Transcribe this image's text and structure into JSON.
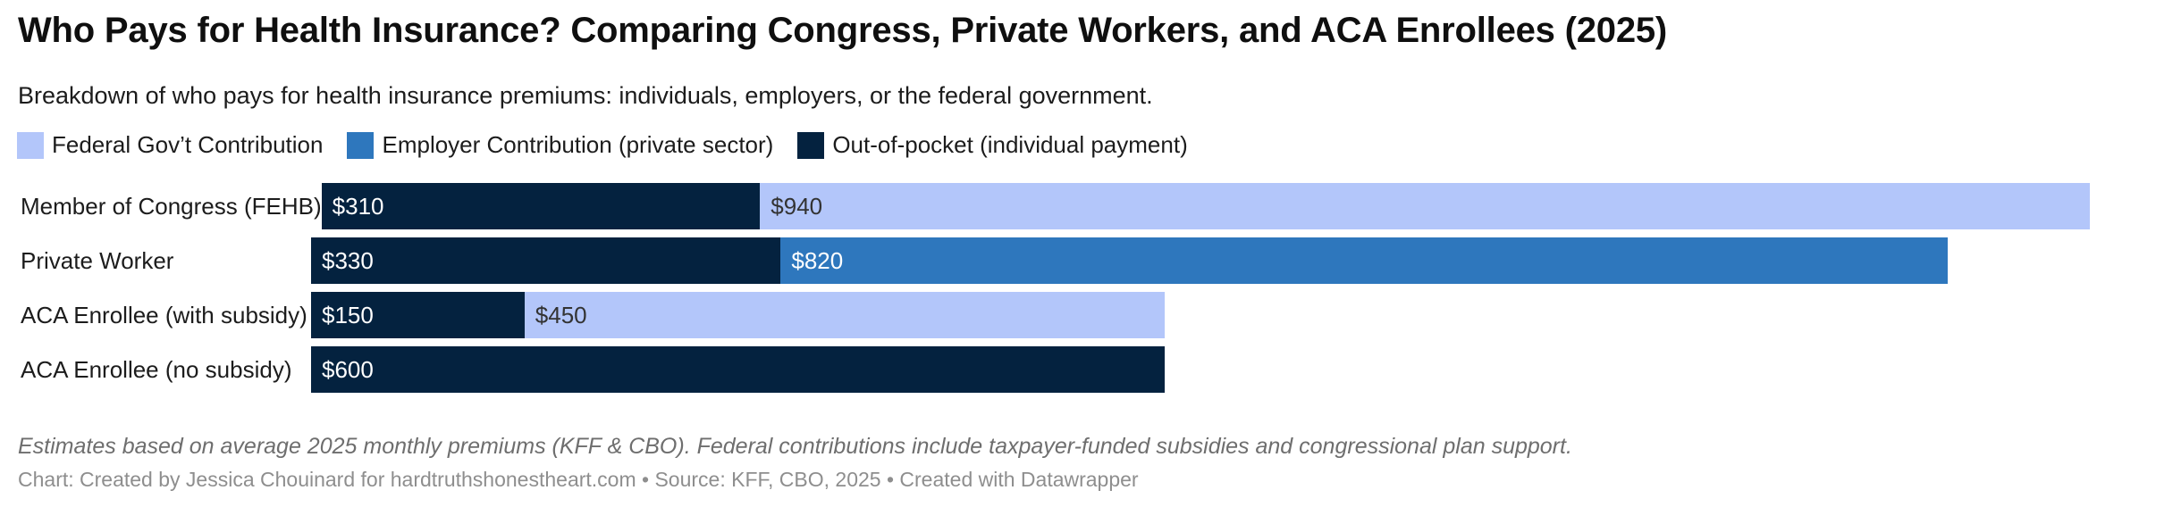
{
  "header": {
    "title": "Who Pays for Health Insurance? Comparing Congress, Private Workers, and ACA Enrollees (2025)",
    "subtitle": "Breakdown of who pays for health insurance premiums: individuals, employers, or the federal government."
  },
  "colors": {
    "federal": "#b3c6fa",
    "employer": "#2e77bd",
    "out_of_pocket": "#04223f",
    "value_on_dark": "#ffffff",
    "value_on_light": "#333333"
  },
  "legend": [
    {
      "label": "Federal Gov’t Contribution",
      "color_key": "federal"
    },
    {
      "label": "Employer Contribution (private sector)",
      "color_key": "employer"
    },
    {
      "label": "Out-of-pocket (individual payment)",
      "color_key": "out_of_pocket"
    }
  ],
  "chart_data": {
    "type": "bar",
    "orientation": "horizontal",
    "stacked": true,
    "unit": "USD per month",
    "max_total": 1250,
    "categories": [
      "Member of Congress (FEHB)",
      "Private Worker",
      "ACA Enrollee (with subsidy)",
      "ACA Enrollee (no subsidy)"
    ],
    "series_names": [
      "Federal Gov’t Contribution",
      "Employer Contribution (private sector)",
      "Out-of-pocket (individual payment)"
    ],
    "rows": [
      {
        "category": "Member of Congress (FEHB)",
        "total": 1250,
        "segments": [
          {
            "series": "Out-of-pocket (individual payment)",
            "color_key": "out_of_pocket",
            "value": 310,
            "label": "$310"
          },
          {
            "series": "Federal Gov’t Contribution",
            "color_key": "federal",
            "value": 940,
            "label": "$940"
          }
        ]
      },
      {
        "category": "Private Worker",
        "total": 1150,
        "segments": [
          {
            "series": "Out-of-pocket (individual payment)",
            "color_key": "out_of_pocket",
            "value": 330,
            "label": "$330"
          },
          {
            "series": "Employer Contribution (private sector)",
            "color_key": "employer",
            "value": 820,
            "label": "$820"
          }
        ]
      },
      {
        "category": "ACA Enrollee (with subsidy)",
        "total": 600,
        "segments": [
          {
            "series": "Out-of-pocket (individual payment)",
            "color_key": "out_of_pocket",
            "value": 150,
            "label": "$150"
          },
          {
            "series": "Federal Gov’t Contribution",
            "color_key": "federal",
            "value": 450,
            "label": "$450"
          }
        ]
      },
      {
        "category": "ACA Enrollee (no subsidy)",
        "total": 600,
        "segments": [
          {
            "series": "Out-of-pocket (individual payment)",
            "color_key": "out_of_pocket",
            "value": 600,
            "label": "$600"
          }
        ]
      }
    ]
  },
  "footer": {
    "notes": "Estimates based on average 2025 monthly premiums (KFF & CBO). Federal contributions include taxpayer-funded subsidies and congressional plan support.",
    "byline": "Chart: Created by Jessica Chouinard for hardtruthshonestheart.com • Source: KFF, CBO, 2025 • Created with Datawrapper"
  }
}
